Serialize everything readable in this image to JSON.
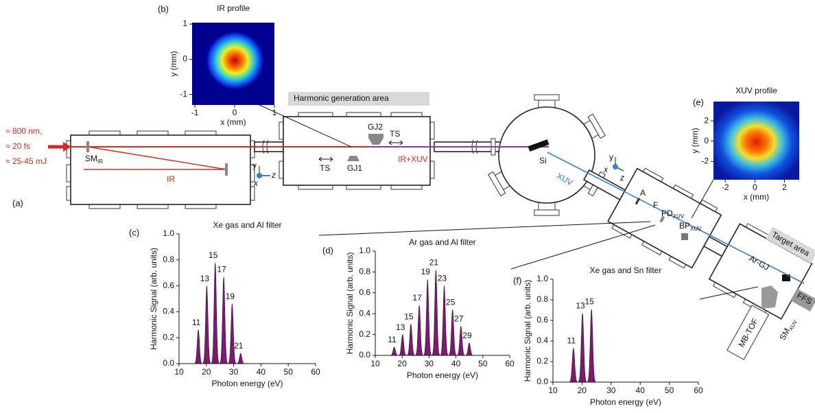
{
  "panel_labels": [
    "(a)",
    "(b)",
    "(c)",
    "(d)",
    "(e)",
    "(f)"
  ],
  "laser": [
    "800 nm,",
    "20 fs",
    "25-45 mJ"
  ],
  "approx": "≈",
  "setup": {
    "sm_ir": {
      "main": "SM",
      "sub": "IR"
    },
    "ir": "IR",
    "area": "Harmonic generation area",
    "gj2": "GJ2",
    "gj1": "GJ1",
    "ts": [
      "TS",
      "TS"
    ],
    "ir_xuv": "IR+XUV",
    "si": "Si",
    "xuv": "XUV",
    "a": "A",
    "f": "F",
    "pd": {
      "main": "PD",
      "sub": "XUV"
    },
    "bp": {
      "main": "BP",
      "sub": "XUV"
    },
    "target": "Target area",
    "ar_gj": "Ar-GJ",
    "ffs": "FFS",
    "mbtof": "MB-TOF",
    "sm_xuv": {
      "main": "SM",
      "sub": "XUV"
    },
    "axes": [
      {
        "y": "y",
        "x": "x",
        "z": "z"
      },
      {
        "y": "y",
        "x": "x",
        "z": "z"
      }
    ]
  },
  "profiles": [
    {
      "title": "IR profile",
      "xlabel": "x (mm)",
      "ylabel": "y (mm)",
      "xlim": [
        -1.07,
        1
      ],
      "ylim": [
        -1.3,
        1.04
      ],
      "xticks": [
        -1,
        0,
        1
      ],
      "yticks": [
        -1,
        0,
        1
      ]
    },
    {
      "title": "XUV profile",
      "xlabel": "x (mm)",
      "ylabel": "y (mm)",
      "xlim": [
        -2.8,
        3
      ],
      "ylim": [
        -3.8,
        3.9
      ],
      "xticks": [
        -2,
        0,
        2
      ],
      "yticks": [
        -2,
        0,
        2
      ]
    }
  ],
  "chart_data": [
    {
      "type": "spectrum",
      "title": "Xe gas and Al filter",
      "xlabel": "Photon energy (eV)",
      "ylabel": "Harmonic Signal (arb. units)",
      "color": "#7a1a70",
      "orders": [
        11,
        13,
        15,
        17,
        19,
        21
      ],
      "x": [
        17.05,
        20.15,
        23.25,
        26.35,
        29.45,
        32.55
      ],
      "values": [
        0.26,
        0.6,
        0.78,
        0.67,
        0.46,
        0.08
      ],
      "xlim": [
        10,
        60
      ],
      "ylim": [
        0,
        1
      ],
      "xticks": [
        10,
        20,
        30,
        40,
        50,
        60
      ],
      "yticks": [
        {
          "value": 0,
          "label": "0.0"
        },
        0.2,
        0.4,
        0.6,
        0.8,
        {
          "value": 1,
          "label": "1.0"
        }
      ]
    },
    {
      "type": "spectrum",
      "title": "Ar gas and Al filter",
      "xlabel": "Photon energy (eV)",
      "ylabel": "Harmonic Signal (arb. units)",
      "color": "#7a1a70",
      "orders": [
        11,
        13,
        15,
        17,
        19,
        21,
        23,
        25,
        27,
        29
      ],
      "x": [
        17.05,
        20.15,
        23.25,
        26.35,
        29.45,
        32.55,
        35.65,
        38.75,
        41.85,
        44.95
      ],
      "values": [
        0.08,
        0.2,
        0.3,
        0.48,
        0.73,
        0.82,
        0.67,
        0.44,
        0.28,
        0.12
      ],
      "xlim": [
        10,
        60
      ],
      "ylim": [
        0,
        1
      ],
      "xticks": [
        10,
        20,
        30,
        40,
        50,
        60
      ],
      "yticks": [
        {
          "value": 0,
          "label": "0.0"
        },
        0.2,
        0.4,
        0.6,
        0.8,
        {
          "value": 1,
          "label": "1.0"
        }
      ]
    },
    {
      "type": "spectrum",
      "title": "Xe gas and Sn filter",
      "xlabel": "Photon energy (eV)",
      "ylabel": "Harmonic Signal (arb. units)",
      "color": "#7a1a70",
      "orders": [
        11,
        13,
        15
      ],
      "x": [
        17.05,
        20.15,
        23.25
      ],
      "values": [
        0.33,
        0.67,
        0.71
      ],
      "xlim": [
        10,
        60
      ],
      "ylim": [
        0,
        1
      ],
      "xticks": [
        10,
        20,
        30,
        40,
        50,
        60
      ],
      "yticks": [
        {
          "value": 0,
          "label": "0.0"
        },
        0.2,
        0.4,
        0.6,
        0.8,
        {
          "value": 1,
          "label": "1.0"
        }
      ]
    }
  ]
}
